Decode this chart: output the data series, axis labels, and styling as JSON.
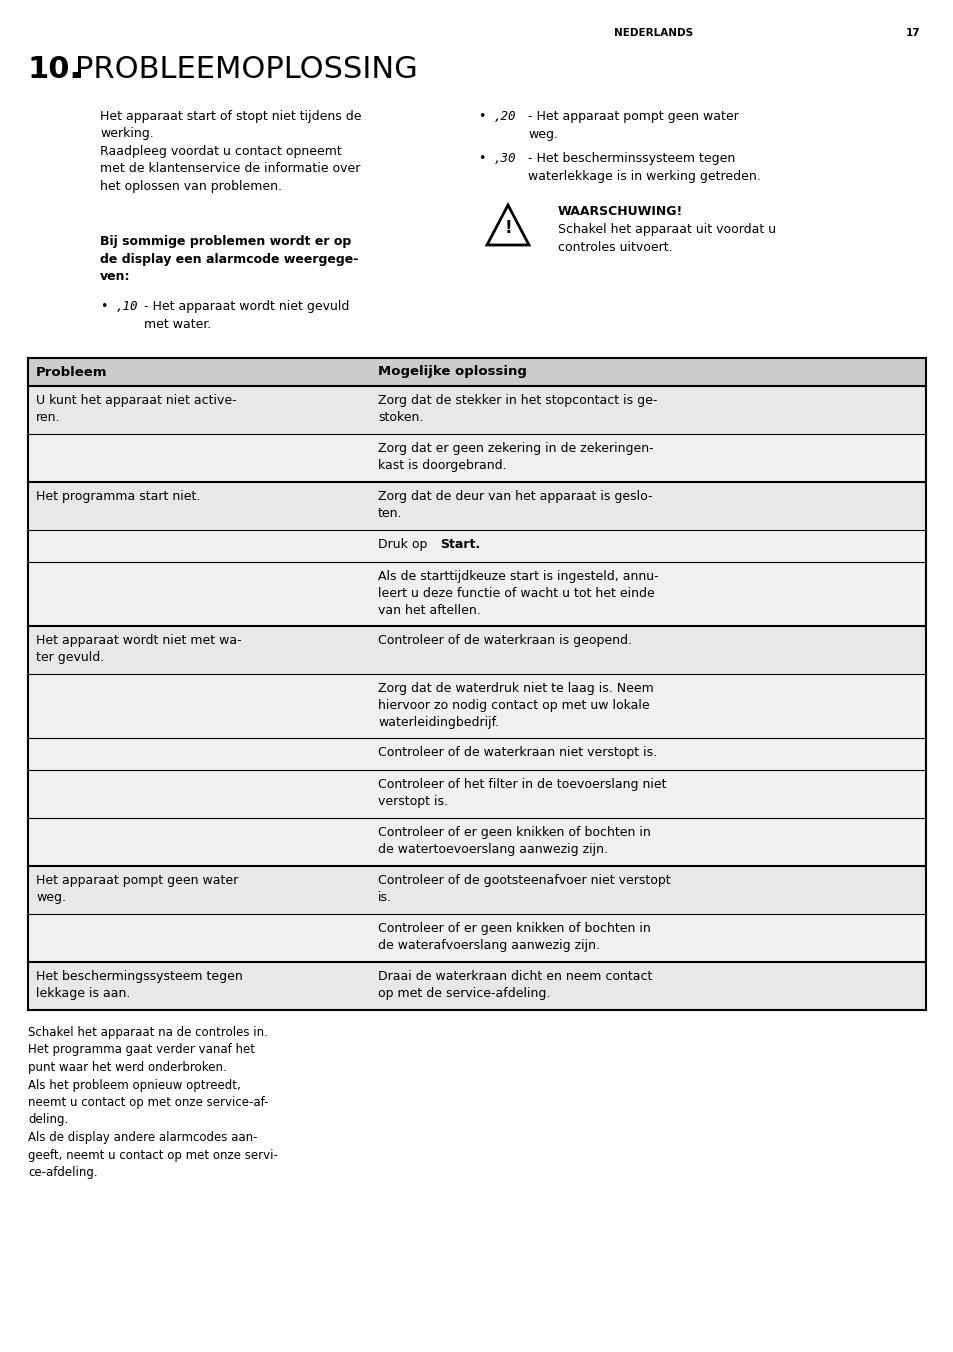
{
  "page_header": "NEDERLANDS    17",
  "title_number": "10.",
  "title_text": " PROBLEEMOPLOSSING",
  "bg_color": "#ffffff",
  "text_color": "#000000",
  "font_size_body": 9.0,
  "font_size_title_num": 22,
  "font_size_title_txt": 20,
  "font_size_header_row": 9.5,
  "font_size_page_hdr": 8.0,
  "table_header": [
    "Probleem",
    "Mogelijke oplossing"
  ],
  "table_rows": [
    [
      "U kunt het apparaat niet active-\nren.",
      "Zorg dat de stekker in het stopcontact is ge-\nstoken."
    ],
    [
      "",
      "Zorg dat er geen zekering in de zekeringen-\nkast is doorgebrand."
    ],
    [
      "Het programma start niet.",
      "Zorg dat de deur van het apparaat is geslo-\nten."
    ],
    [
      "",
      "Druk op |Start|."
    ],
    [
      "",
      "Als de starttijdkeuze start is ingesteld, annu-\nleert u deze functie of wacht u tot het einde\nvan het aftellen."
    ],
    [
      "Het apparaat wordt niet met wa-\nter gevuld.",
      "Controleer of de waterkraan is geopend."
    ],
    [
      "",
      "Zorg dat de waterdruk niet te laag is. Neem\nhiervoor zo nodig contact op met uw lokale\nwaterleidingbedrijf."
    ],
    [
      "",
      "Controleer of de waterkraan niet verstopt is."
    ],
    [
      "",
      "Controleer of het filter in de toevoerslang niet\nverstopt is."
    ],
    [
      "",
      "Controleer of er geen knikken of bochten in\nde watertoevoerslang aanwezig zijn."
    ],
    [
      "Het apparaat pompt geen water\nweg.",
      "Controleer of de gootsteenafvoer niet verstopt\nis."
    ],
    [
      "",
      "Controleer of er geen knikken of bochten in\nde waterafvoerslang aanwezig zijn."
    ],
    [
      "Het beschermingssysteem tegen\nlekkage is aan.",
      "Draai de waterkraan dicht en neem contact\nop met de service-afdeling."
    ]
  ],
  "group_ends": [
    1,
    4,
    9,
    11,
    12
  ],
  "footer_text": "Schakel het apparaat na de controles in.\nHet programma gaat verder vanaf het\npunt waar het werd onderbroken.\nAls het probleem opnieuw optreedt,\nneemt u contact op met onze service-af-\ndeling.\nAls de display andere alarmcodes aan-\ngeeft, neemt u contact op met onze servi-\nce-afdeling.",
  "header_bg": "#cccccc",
  "row_bg_white": "#f0f0f0",
  "row_bg_gray": "#e0e0e0"
}
